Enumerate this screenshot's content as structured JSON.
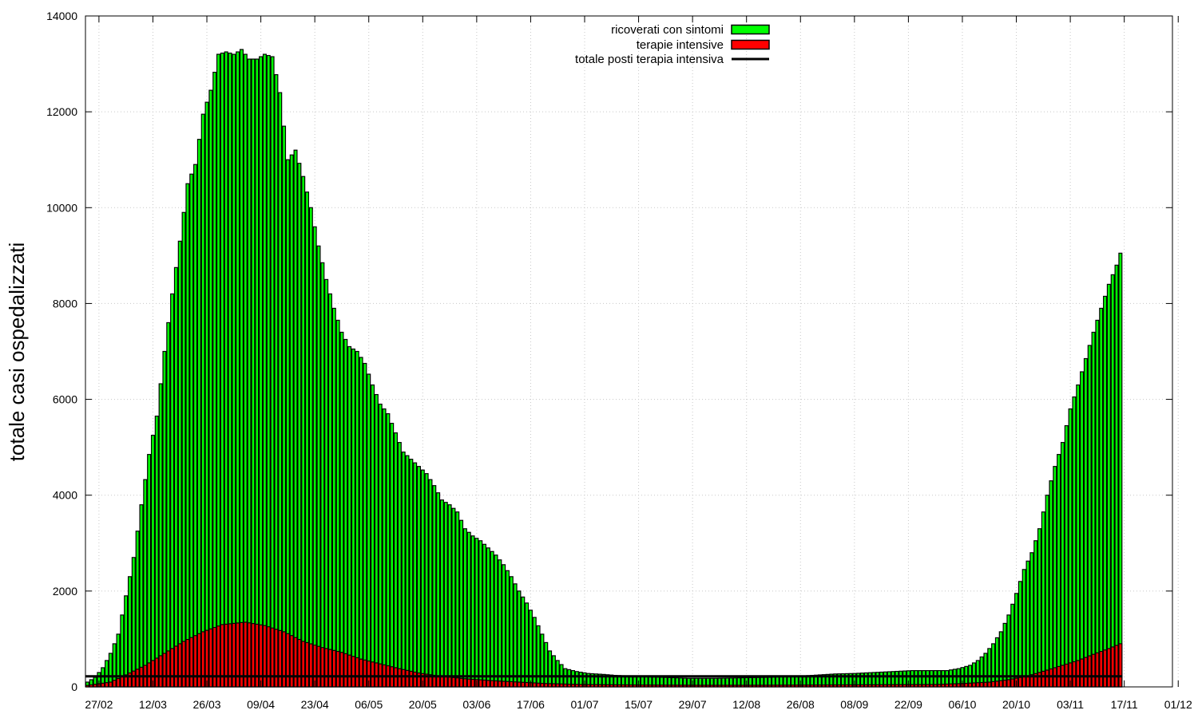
{
  "chart_data": {
    "type": "bar",
    "ylabel": "totale casi ospedalizzati",
    "xlabel": "",
    "title": "",
    "ylim": [
      0,
      14000
    ],
    "yticks": [
      0,
      2000,
      4000,
      6000,
      8000,
      10000,
      12000,
      14000
    ],
    "x_start_date": "2020-02-24",
    "x_end_date": "2020-12-01",
    "xticks": [
      "27/02",
      "12/03",
      "26/03",
      "09/04",
      "23/04",
      "06/05",
      "20/05",
      "03/06",
      "17/06",
      "01/07",
      "15/07",
      "29/07",
      "12/08",
      "26/08",
      "08/09",
      "22/09",
      "06/10",
      "20/10",
      "03/11",
      "17/11",
      "01/12"
    ],
    "grid": true,
    "legend_position": "top-center",
    "series": [
      {
        "name": "ricoverati con sintomi",
        "kind": "bar",
        "color": "#00ff00",
        "anchors": [
          [
            "2020-02-24",
            100
          ],
          [
            "2020-02-26",
            200
          ],
          [
            "2020-02-28",
            400
          ],
          [
            "2020-03-01",
            700
          ],
          [
            "2020-03-03",
            1100
          ],
          [
            "2020-03-05",
            1900
          ],
          [
            "2020-03-07",
            2700
          ],
          [
            "2020-03-09",
            3800
          ],
          [
            "2020-03-11",
            4850
          ],
          [
            "2020-03-13",
            5650
          ],
          [
            "2020-03-15",
            7000
          ],
          [
            "2020-03-17",
            8200
          ],
          [
            "2020-03-19",
            9300
          ],
          [
            "2020-03-21",
            10500
          ],
          [
            "2020-03-23",
            10900
          ],
          [
            "2020-03-25",
            11950
          ],
          [
            "2020-03-27",
            12450
          ],
          [
            "2020-03-29",
            13200
          ],
          [
            "2020-03-31",
            13250
          ],
          [
            "2020-04-02",
            13200
          ],
          [
            "2020-04-04",
            13300
          ],
          [
            "2020-04-06",
            13100
          ],
          [
            "2020-04-08",
            13100
          ],
          [
            "2020-04-10",
            13200
          ],
          [
            "2020-04-12",
            13150
          ],
          [
            "2020-04-14",
            12400
          ],
          [
            "2020-04-16",
            11000
          ],
          [
            "2020-04-18",
            11200
          ],
          [
            "2020-04-20",
            10650
          ],
          [
            "2020-04-22",
            10000
          ],
          [
            "2020-04-24",
            9200
          ],
          [
            "2020-04-26",
            8500
          ],
          [
            "2020-04-28",
            7900
          ],
          [
            "2020-04-30",
            7400
          ],
          [
            "2020-05-02",
            7100
          ],
          [
            "2020-05-04",
            7000
          ],
          [
            "2020-05-06",
            6750
          ],
          [
            "2020-05-08",
            6300
          ],
          [
            "2020-05-10",
            5900
          ],
          [
            "2020-05-12",
            5700
          ],
          [
            "2020-05-14",
            5300
          ],
          [
            "2020-05-16",
            4900
          ],
          [
            "2020-05-18",
            4750
          ],
          [
            "2020-05-20",
            4600
          ],
          [
            "2020-05-22",
            4450
          ],
          [
            "2020-05-24",
            4200
          ],
          [
            "2020-05-26",
            3900
          ],
          [
            "2020-05-28",
            3800
          ],
          [
            "2020-05-30",
            3650
          ],
          [
            "2020-06-01",
            3300
          ],
          [
            "2020-06-03",
            3150
          ],
          [
            "2020-06-05",
            3050
          ],
          [
            "2020-06-07",
            2900
          ],
          [
            "2020-06-09",
            2750
          ],
          [
            "2020-06-11",
            2550
          ],
          [
            "2020-06-13",
            2300
          ],
          [
            "2020-06-15",
            2000
          ],
          [
            "2020-06-17",
            1750
          ],
          [
            "2020-06-19",
            1450
          ],
          [
            "2020-06-21",
            1100
          ],
          [
            "2020-06-23",
            750
          ],
          [
            "2020-06-25",
            550
          ],
          [
            "2020-06-27",
            380
          ],
          [
            "2020-06-30",
            320
          ],
          [
            "2020-07-03",
            280
          ],
          [
            "2020-07-07",
            260
          ],
          [
            "2020-07-10",
            240
          ],
          [
            "2020-07-15",
            220
          ],
          [
            "2020-07-22",
            200
          ],
          [
            "2020-07-29",
            180
          ],
          [
            "2020-08-05",
            180
          ],
          [
            "2020-08-12",
            190
          ],
          [
            "2020-08-19",
            200
          ],
          [
            "2020-08-26",
            220
          ],
          [
            "2020-09-01",
            250
          ],
          [
            "2020-09-05",
            270
          ],
          [
            "2020-09-10",
            280
          ],
          [
            "2020-09-15",
            300
          ],
          [
            "2020-09-20",
            320
          ],
          [
            "2020-09-25",
            340
          ],
          [
            "2020-09-30",
            340
          ],
          [
            "2020-10-04",
            340
          ],
          [
            "2020-10-07",
            380
          ],
          [
            "2020-10-10",
            450
          ],
          [
            "2020-10-12",
            550
          ],
          [
            "2020-10-14",
            700
          ],
          [
            "2020-10-16",
            900
          ],
          [
            "2020-10-18",
            1150
          ],
          [
            "2020-10-20",
            1500
          ],
          [
            "2020-10-22",
            1950
          ],
          [
            "2020-10-24",
            2450
          ],
          [
            "2020-10-26",
            2800
          ],
          [
            "2020-10-28",
            3300
          ],
          [
            "2020-10-30",
            4000
          ],
          [
            "2020-11-01",
            4600
          ],
          [
            "2020-11-03",
            5100
          ],
          [
            "2020-11-05",
            5800
          ],
          [
            "2020-11-07",
            6300
          ],
          [
            "2020-11-09",
            6850
          ],
          [
            "2020-11-11",
            7400
          ],
          [
            "2020-11-13",
            7900
          ],
          [
            "2020-11-15",
            8400
          ],
          [
            "2020-11-17",
            8800
          ],
          [
            "2020-11-18",
            9050
          ]
        ]
      },
      {
        "name": "terapie intensive",
        "kind": "bar",
        "color": "#ff0000",
        "anchors": [
          [
            "2020-02-24",
            30
          ],
          [
            "2020-03-01",
            100
          ],
          [
            "2020-03-05",
            250
          ],
          [
            "2020-03-10",
            450
          ],
          [
            "2020-03-15",
            700
          ],
          [
            "2020-03-20",
            950
          ],
          [
            "2020-03-25",
            1150
          ],
          [
            "2020-03-30",
            1300
          ],
          [
            "2020-04-05",
            1350
          ],
          [
            "2020-04-10",
            1280
          ],
          [
            "2020-04-15",
            1150
          ],
          [
            "2020-04-20",
            950
          ],
          [
            "2020-04-25",
            820
          ],
          [
            "2020-04-30",
            720
          ],
          [
            "2020-05-05",
            580
          ],
          [
            "2020-05-10",
            480
          ],
          [
            "2020-05-15",
            380
          ],
          [
            "2020-05-20",
            290
          ],
          [
            "2020-05-25",
            230
          ],
          [
            "2020-06-01",
            170
          ],
          [
            "2020-06-08",
            130
          ],
          [
            "2020-06-15",
            100
          ],
          [
            "2020-06-22",
            70
          ],
          [
            "2020-07-01",
            50
          ],
          [
            "2020-07-15",
            40
          ],
          [
            "2020-08-01",
            35
          ],
          [
            "2020-08-15",
            35
          ],
          [
            "2020-09-01",
            40
          ],
          [
            "2020-09-15",
            45
          ],
          [
            "2020-10-01",
            50
          ],
          [
            "2020-10-08",
            70
          ],
          [
            "2020-10-15",
            100
          ],
          [
            "2020-10-20",
            150
          ],
          [
            "2020-10-25",
            230
          ],
          [
            "2020-10-30",
            350
          ],
          [
            "2020-11-03",
            450
          ],
          [
            "2020-11-07",
            550
          ],
          [
            "2020-11-11",
            680
          ],
          [
            "2020-11-15",
            800
          ],
          [
            "2020-11-18",
            900
          ]
        ]
      },
      {
        "name": "totale posti terapia intensiva",
        "kind": "line",
        "color": "#000000",
        "value": 220,
        "x_from": "2020-02-24",
        "x_to": "2020-11-18"
      }
    ]
  }
}
